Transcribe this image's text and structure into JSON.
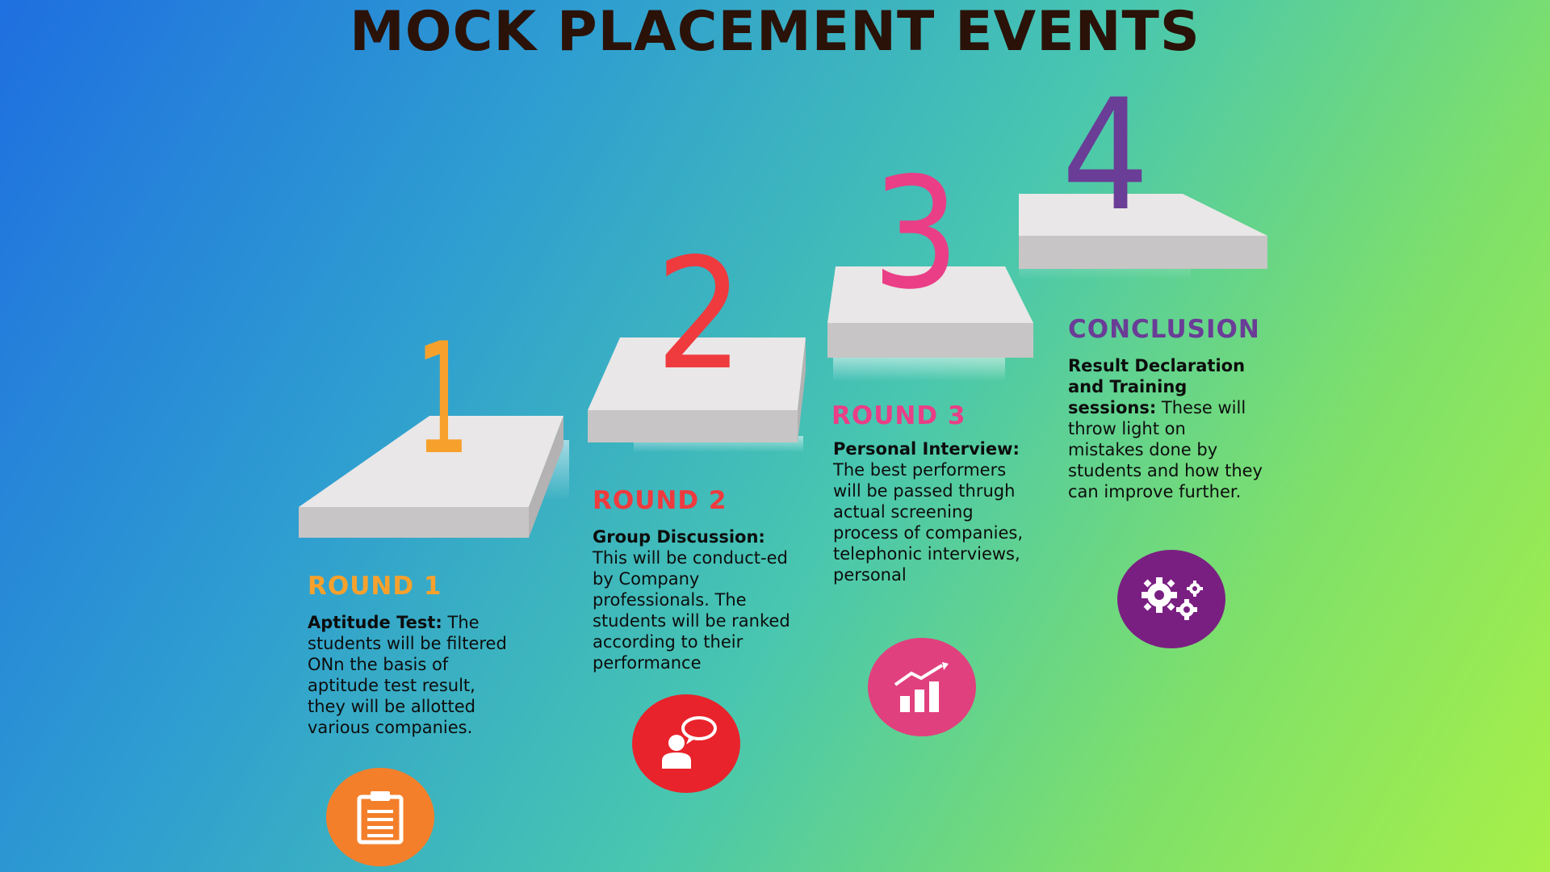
{
  "title": "MOCK PLACEMENT EVENTS",
  "steps": [
    {
      "number": "1",
      "heading": "ROUND 1",
      "bold": "Aptitude Test:",
      "text": " The students will be filtered ONn the basis of aptitude test result, they will be allotted various companies.",
      "icon": "clipboard-icon",
      "color": "#f7a12c"
    },
    {
      "number": "2",
      "heading": "ROUND 2",
      "bold": "Group Discussion:",
      "text": " This will be conduct-ed by Company professionals. The students will be ranked according to their performance",
      "icon": "discussion-person-icon",
      "color": "#ef3a3e"
    },
    {
      "number": "3",
      "heading": "ROUND 3",
      "bold": "Personal Interview:",
      "text": " The best performers will be passed thrugh actual screening process of companies, telephonic interviews, personal",
      "icon": "growth-chart-icon",
      "color": "#ea3e86"
    },
    {
      "number": "4",
      "heading": "CONCLUSION",
      "bold": "Result Declaration and Training sessions:",
      "text": " These will throw light on mistakes done by students and how they can improve further.",
      "icon": "gears-icon",
      "color": "#6a3d96"
    }
  ]
}
